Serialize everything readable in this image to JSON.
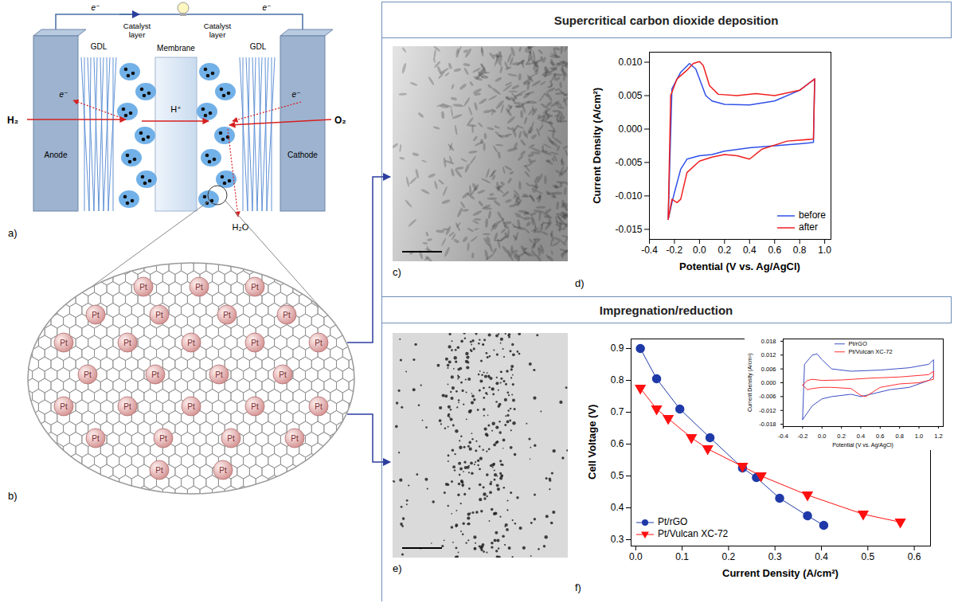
{
  "headers": [
    "Supercritical carbon dioxide deposition",
    "Impregnation/reduction"
  ],
  "panels": {
    "a": {
      "letter": "a)",
      "labels": {
        "wire_left": "e⁻",
        "wire_right": "e⁻",
        "anode": "Anode",
        "cathode": "Cathode",
        "gdl_left": "GDL",
        "catalyst_left": "Catalyst layer",
        "membrane": "Membrane",
        "catalyst_right": "Catalyst layer",
        "gdl_right": "GDL",
        "h2": "H₂",
        "o2": "O₂",
        "proton": "H⁺",
        "electron_anode": "e⁻",
        "electron_cathode": "e⁻",
        "water": "H₂O"
      }
    },
    "b": {
      "letter": "b)",
      "particle_label": "Pt"
    },
    "c": {
      "letter": "c)"
    },
    "e": {
      "letter": "e)"
    }
  },
  "chart_data": [
    {
      "type": "line",
      "panel_letter": "d)",
      "x_label": "Potential (V vs. Ag/AgCl)",
      "y_label": "Current Density (A/cm²)",
      "xlim": [
        -0.4,
        1.05
      ],
      "ylim": [
        -0.0165,
        0.0115
      ],
      "xticks": [
        -0.4,
        -0.2,
        {
          "value": 0,
          "label": "0.0"
        },
        0.2,
        0.4,
        0.6,
        0.8,
        {
          "value": 1,
          "label": "1.0"
        }
      ],
      "yticks": [
        -0.015,
        {
          "value": -0.01,
          "label": "-0.010"
        },
        -0.005,
        {
          "value": 0,
          "label": "0.000"
        },
        0.005,
        {
          "value": 0.01,
          "label": "0.010"
        }
      ],
      "legend": "bottom-right",
      "series": [
        {
          "name": "before",
          "color": "#3050e8",
          "x": [
            -0.25,
            -0.22,
            -0.15,
            -0.08,
            -0.03,
            0.0,
            0.05,
            0.1,
            0.2,
            0.4,
            0.6,
            0.8,
            0.92,
            0.91,
            0.8,
            0.6,
            0.4,
            0.2,
            0.1,
            0.0,
            -0.1,
            -0.15,
            -0.2,
            -0.22,
            -0.25
          ],
          "values": [
            -0.0135,
            0.006,
            0.0085,
            0.0098,
            0.009,
            0.0075,
            0.005,
            0.0042,
            0.0037,
            0.0036,
            0.0042,
            0.0058,
            0.0075,
            -0.002,
            -0.0022,
            -0.0025,
            -0.0028,
            -0.0033,
            -0.0038,
            -0.004,
            -0.0045,
            -0.006,
            -0.0095,
            -0.011,
            -0.0135
          ]
        },
        {
          "name": "after",
          "color": "#f02020",
          "x": [
            -0.25,
            -0.23,
            -0.18,
            -0.1,
            -0.05,
            0.0,
            0.03,
            0.08,
            0.15,
            0.3,
            0.45,
            0.6,
            0.8,
            0.92,
            0.91,
            0.7,
            0.5,
            0.4,
            0.3,
            0.2,
            0.1,
            0.0,
            -0.1,
            -0.15,
            -0.18,
            -0.22,
            -0.25
          ],
          "values": [
            -0.0135,
            0.005,
            0.0075,
            0.0088,
            0.0098,
            0.0101,
            0.0095,
            0.0065,
            0.0052,
            0.005,
            0.0053,
            0.005,
            0.0058,
            0.0075,
            -0.0015,
            -0.0018,
            -0.003,
            -0.0045,
            -0.004,
            -0.0038,
            -0.0042,
            -0.0048,
            -0.0065,
            -0.0105,
            -0.011,
            -0.0105,
            -0.0135
          ]
        }
      ]
    },
    {
      "type": "line",
      "panel_letter": "f)",
      "x_label": "Current Density (A/cm²)",
      "y_label": "Cell Voltage (V)",
      "xlim": [
        -0.01,
        0.635
      ],
      "ylim": [
        0.28,
        0.93
      ],
      "xticks": [
        {
          "value": 0,
          "label": "0.0"
        },
        0.1,
        0.2,
        0.3,
        0.4,
        0.5,
        0.6
      ],
      "yticks": [
        0.3,
        0.4,
        0.5,
        0.6,
        0.7,
        0.8,
        0.9
      ],
      "legend": "bottom-left",
      "series": [
        {
          "name": "Pt/rGO",
          "color": "#1f3aa8",
          "marker": "circle",
          "x": [
            0.01,
            0.045,
            0.095,
            0.16,
            0.23,
            0.26,
            0.31,
            0.37,
            0.405
          ],
          "values": [
            0.9,
            0.805,
            0.71,
            0.62,
            0.525,
            0.495,
            0.43,
            0.375,
            0.345
          ]
        },
        {
          "name": "Pt/Vulcan XC-72",
          "color": "#ff1010",
          "marker": "triangle-down",
          "x": [
            0.01,
            0.045,
            0.07,
            0.12,
            0.155,
            0.23,
            0.27,
            0.37,
            0.49,
            0.57
          ],
          "values": [
            0.775,
            0.71,
            0.68,
            0.62,
            0.585,
            0.53,
            0.5,
            0.44,
            0.38,
            0.355
          ]
        }
      ]
    },
    {
      "type": "line",
      "x_label": "Potential (V vs. Ag/AgCl)",
      "y_label": "Current Density (A/cm²)",
      "xlim": [
        -0.4,
        1.25
      ],
      "ylim": [
        -0.019,
        0.019
      ],
      "xticks": [
        -0.4,
        -0.2,
        {
          "value": 0,
          "label": "0.0"
        },
        0.2,
        0.4,
        0.6,
        0.8,
        {
          "value": 1,
          "label": "1.0"
        },
        1.2
      ],
      "yticks": [
        -0.018,
        -0.012,
        -0.006,
        {
          "value": 0,
          "label": "0.000"
        },
        0.006,
        0.012,
        0.018
      ],
      "legend": "top",
      "series": [
        {
          "name": "Pt/rGO",
          "color": "#3d4fc4",
          "x": [
            -0.2,
            -0.18,
            -0.1,
            -0.05,
            0.0,
            0.1,
            0.3,
            0.6,
            0.9,
            1.1,
            1.15,
            1.15,
            1.1,
            0.9,
            0.7,
            0.5,
            0.4,
            0.3,
            0.1,
            0.0,
            -0.1,
            -0.2
          ],
          "values": [
            -0.016,
            0.008,
            0.012,
            0.0125,
            0.01,
            0.006,
            0.005,
            0.0055,
            0.0065,
            0.008,
            0.01,
            0.003,
            0.001,
            -0.002,
            -0.003,
            -0.005,
            -0.006,
            -0.005,
            -0.006,
            -0.007,
            -0.01,
            -0.016
          ]
        },
        {
          "name": "Pt/Vulcan XC-72",
          "color": "#ff3030",
          "x": [
            -0.2,
            -0.15,
            -0.1,
            0.0,
            0.2,
            0.5,
            0.8,
            1.1,
            1.15,
            1.15,
            1.0,
            0.8,
            0.6,
            0.45,
            0.4,
            0.3,
            0.1,
            0.0,
            -0.1,
            -0.15,
            -0.2
          ],
          "values": [
            -0.001,
            0.001,
            0.0015,
            0.001,
            0.0012,
            0.002,
            0.0025,
            0.0035,
            0.005,
            0.0015,
            0.0,
            -0.0005,
            -0.002,
            -0.006,
            -0.0055,
            -0.0025,
            -0.002,
            -0.002,
            -0.0025,
            -0.003,
            -0.001
          ]
        }
      ]
    }
  ]
}
